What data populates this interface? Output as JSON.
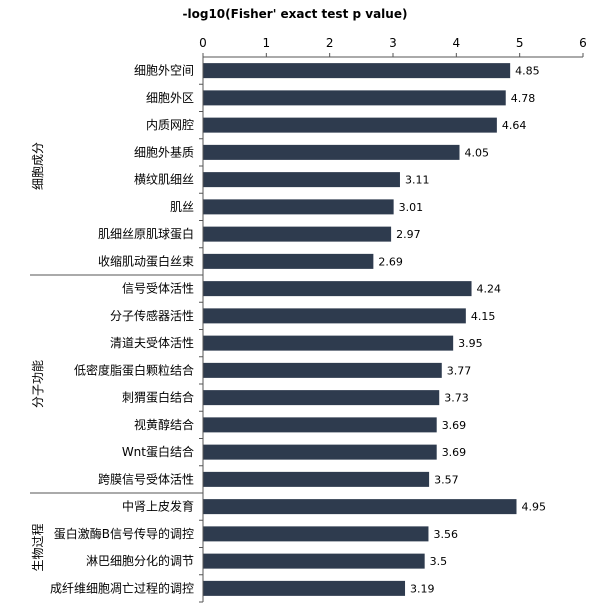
{
  "chart_data": {
    "type": "bar",
    "orientation": "horizontal",
    "title": "-log10(Fisher' exact test p value)",
    "xlim": [
      0,
      6
    ],
    "xticks": [
      0,
      1,
      2,
      3,
      4,
      5,
      6
    ],
    "grid": false,
    "bar_color": "#2e3b4e",
    "groups": [
      {
        "name": "细胞成分",
        "categories": [
          "细胞外空间",
          "细胞外区",
          "内质网腔",
          "细胞外基质",
          "横纹肌细丝",
          "肌丝",
          "肌细丝原肌球蛋白",
          "收缩肌动蛋白丝束"
        ],
        "values": [
          4.85,
          4.78,
          4.64,
          4.05,
          3.11,
          3.01,
          2.97,
          2.69
        ]
      },
      {
        "name": "分子功能",
        "categories": [
          "信号受体活性",
          "分子传感器活性",
          "清道夫受体活性",
          "低密度脂蛋白颗粒结合",
          "刺猬蛋白结合",
          "视黄醇结合",
          "Wnt蛋白结合",
          "跨膜信号受体活性"
        ],
        "values": [
          4.24,
          4.15,
          3.95,
          3.77,
          3.73,
          3.69,
          3.69,
          3.57
        ]
      },
      {
        "name": "生物过程",
        "categories": [
          "中肾上皮发育",
          "蛋白激酶B信号传导的调控",
          "淋巴细胞分化的调节",
          "成纤维细胞凋亡过程的调控"
        ],
        "values": [
          4.95,
          3.56,
          3.5,
          3.19
        ]
      }
    ]
  }
}
